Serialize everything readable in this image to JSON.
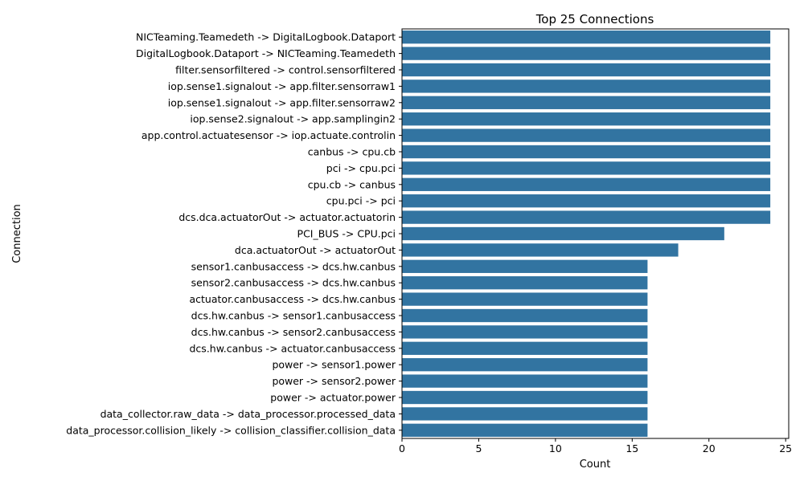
{
  "chart_data": {
    "type": "bar",
    "orientation": "horizontal",
    "title": "Top 25 Connections",
    "xlabel": "Count",
    "ylabel": "Connection",
    "xlim": [
      0,
      25.2
    ],
    "xticks": [
      0,
      5,
      10,
      15,
      20,
      25
    ],
    "grid": false,
    "bar_color": "#3274a1",
    "categories": [
      "NICTeaming.Teamedeth -> DigitalLogbook.Dataport",
      "DigitalLogbook.Dataport -> NICTeaming.Teamedeth",
      "filter.sensorfiltered -> control.sensorfiltered",
      "iop.sense1.signalout -> app.filter.sensorraw1",
      "iop.sense1.signalout -> app.filter.sensorraw2",
      "iop.sense2.signalout -> app.samplingin2",
      "app.control.actuatesensor -> iop.actuate.controlin",
      "canbus -> cpu.cb",
      "pci -> cpu.pci",
      "cpu.cb -> canbus",
      "cpu.pci -> pci",
      "dcs.dca.actuatorOut -> actuator.actuatorin",
      "PCI_BUS -> CPU.pci",
      "dca.actuatorOut -> actuatorOut",
      "sensor1.canbusaccess -> dcs.hw.canbus",
      "sensor2.canbusaccess -> dcs.hw.canbus",
      "actuator.canbusaccess -> dcs.hw.canbus",
      "dcs.hw.canbus -> sensor1.canbusaccess",
      "dcs.hw.canbus -> sensor2.canbusaccess",
      "dcs.hw.canbus -> actuator.canbusaccess",
      "power -> sensor1.power",
      "power -> sensor2.power",
      "power -> actuator.power",
      "data_collector.raw_data -> data_processor.processed_data",
      "data_processor.collision_likely -> collision_classifier.collision_data"
    ],
    "values": [
      24,
      24,
      24,
      24,
      24,
      24,
      24,
      24,
      24,
      24,
      24,
      24,
      21,
      18,
      16,
      16,
      16,
      16,
      16,
      16,
      16,
      16,
      16,
      16,
      16
    ]
  }
}
